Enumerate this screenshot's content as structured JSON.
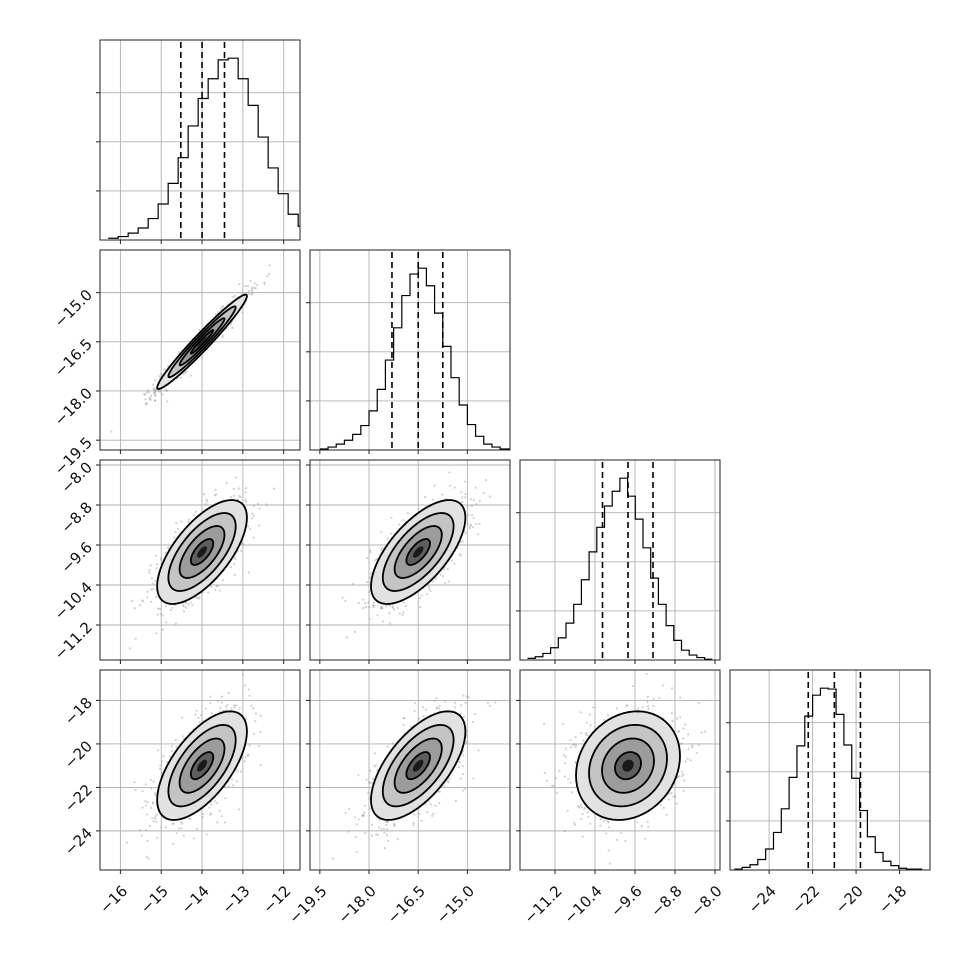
{
  "chart_data": {
    "type": "corner",
    "parameters": 4,
    "grid": true,
    "colors": {
      "line": "#000000",
      "scatter": "#9a9a9a",
      "grid": "#b0b0b0"
    },
    "axis_ranges": [
      [
        -16.5,
        -11.6
      ],
      [
        -19.8,
        -13.7
      ],
      [
        -11.9,
        -7.9
      ],
      [
        -25.8,
        -16.6
      ]
    ],
    "ticks": [
      {
        "values": [
          -16,
          -15,
          -14,
          -13,
          -12
        ],
        "labels": [
          "−16",
          "−15",
          "−14",
          "−13",
          "−12"
        ]
      },
      {
        "values": [
          -19.5,
          -18.0,
          -16.5,
          -15.0
        ],
        "labels": [
          "−19.5",
          "−18.0",
          "−16.5",
          "−15.0"
        ]
      },
      {
        "values": [
          -11.2,
          -10.4,
          -9.6,
          -8.8,
          -8.0
        ],
        "labels": [
          "−11.2",
          "−10.4",
          "−9.6",
          "−8.8",
          "−8.0"
        ]
      },
      {
        "values": [
          -24,
          -22,
          -20,
          -18
        ],
        "labels": [
          "−24",
          "−22",
          "−20",
          "−18"
        ]
      }
    ],
    "quantiles": [
      [
        -14.52,
        -14.0,
        -13.45
      ],
      [
        -17.3,
        -16.5,
        -15.75
      ],
      [
        -10.25,
        -9.74,
        -9.24
      ],
      [
        -22.2,
        -21.0,
        -19.8
      ]
    ],
    "marginals": [
      {
        "edges_start": -16.3,
        "bin_width": 0.245,
        "counts": [
          2,
          4,
          8,
          14,
          25,
          42,
          66,
          96,
          133,
          165,
          188,
          210,
          212,
          188,
          157,
          120,
          84,
          54,
          30,
          16,
          8,
          4,
          2,
          1
        ]
      },
      {
        "edges_start": -19.5,
        "bin_width": 0.25,
        "counts": [
          1,
          3,
          6,
          10,
          16,
          25,
          40,
          62,
          92,
          125,
          158,
          180,
          186,
          168,
          140,
          106,
          74,
          46,
          26,
          14,
          6,
          3,
          1,
          1
        ]
      },
      {
        "edges_start": -11.75,
        "bin_width": 0.154,
        "counts": [
          2,
          4,
          8,
          15,
          27,
          45,
          68,
          98,
          132,
          162,
          188,
          206,
          222,
          200,
          172,
          137,
          100,
          68,
          42,
          24,
          12,
          6,
          3,
          1
        ]
      },
      {
        "edges_start": -25.6,
        "bin_width": 0.36,
        "counts": [
          1,
          3,
          6,
          12,
          24,
          43,
          70,
          106,
          142,
          176,
          200,
          208,
          207,
          178,
          143,
          105,
          68,
          38,
          20,
          10,
          5,
          2,
          1,
          1
        ]
      }
    ],
    "joint": {
      "means": [
        -14.0,
        -16.5,
        -9.74,
        -21.0
      ],
      "sigmas": [
        0.55,
        0.72,
        0.52,
        1.25
      ],
      "correlation": [
        [
          1.0,
          0.97,
          0.66,
          0.63
        ],
        [
          0.97,
          1.0,
          0.66,
          0.63
        ],
        [
          0.66,
          0.66,
          1.0,
          0.18
        ],
        [
          0.63,
          0.63,
          0.18,
          1.0
        ]
      ],
      "contour_levels_sigma": [
        0.5,
        1.0,
        1.5,
        2.0
      ]
    }
  }
}
